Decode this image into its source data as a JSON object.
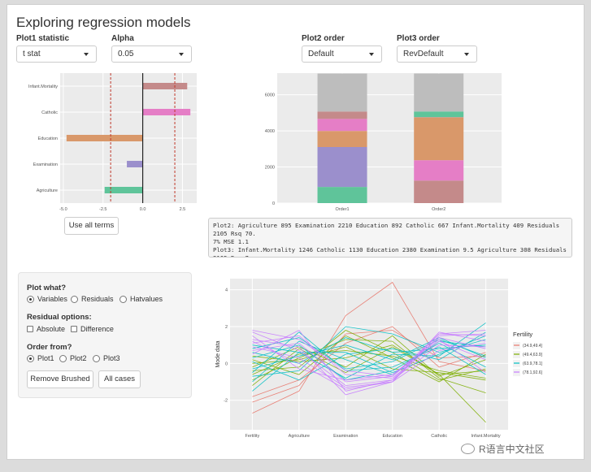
{
  "title": "Exploring regression models",
  "controls": {
    "plot1_statistic": {
      "label": "Plot1 statistic",
      "value": "t stat"
    },
    "alpha": {
      "label": "Alpha",
      "value": "0.05"
    },
    "plot2_order": {
      "label": "Plot2 order",
      "value": "Default"
    },
    "plot3_order": {
      "label": "Plot3 order",
      "value": "RevDefault"
    },
    "use_all_terms": "Use all terms"
  },
  "output_text": "Plot2: Agriculture 895 Examination 2210 Education 892 Catholic 667 Infant.Mortality 409 Residuals 2105 Rsq 70.\n7% MSE 1.1\nPlot3: Infant.Mortality 1246 Catholic 1130 Education 2380 Examination 9.5 Agriculture 308 Residuals 2105 Rsq 7\n0.7% MSE 1.1",
  "panel": {
    "plot_what": {
      "label": "Plot what?",
      "options": [
        "Variables",
        "Residuals",
        "Hatvalues"
      ],
      "selected": 0
    },
    "residual_options": {
      "label": "Residual options:",
      "options": [
        "Absolute",
        "Difference"
      ]
    },
    "order_from": {
      "label": "Order from?",
      "options": [
        "Plot1",
        "Plot2",
        "Plot3"
      ],
      "selected": 0
    },
    "remove_brushed": "Remove Brushed",
    "all_cases": "All cases"
  },
  "watermark": "R语言中文社区",
  "colors": {
    "bg": "#ebebeb",
    "grid": "#ffffff",
    "crit": "#c0392b"
  },
  "chart_data": [
    {
      "type": "bar",
      "orientation": "horizontal",
      "categories": [
        "Infant.Mortality",
        "Catholic",
        "Education",
        "Examination",
        "Agriculture"
      ],
      "values": [
        2.8,
        3.0,
        -4.8,
        -1.0,
        -2.4
      ],
      "colors": [
        "#c48a8a",
        "#e57ec6",
        "#d9986a",
        "#9b8fcc",
        "#5fc49a"
      ],
      "critical_lines": [
        -2.02,
        2.02
      ],
      "xlim": [
        -5.2,
        3.4
      ],
      "xticks": [
        "-5.0",
        "-2.5",
        "0.0",
        "2.5"
      ],
      "xtick_values": [
        -5,
        -2.5,
        0,
        2.5
      ]
    },
    {
      "type": "bar",
      "stacked": true,
      "categories": [
        "Order1",
        "Order2"
      ],
      "ylim": [
        0,
        7200
      ],
      "yticks": [
        "0",
        "2000",
        "4000",
        "6000"
      ],
      "ytick_values": [
        0,
        2000,
        4000,
        6000
      ],
      "stacks": [
        [
          {
            "value": 895,
            "color": "#5fc49a"
          },
          {
            "value": 2210,
            "color": "#9b8fcc"
          },
          {
            "value": 892,
            "color": "#d9986a"
          },
          {
            "value": 667,
            "color": "#e57ec6"
          },
          {
            "value": 409,
            "color": "#c48a8a"
          },
          {
            "value": 2105,
            "color": "#bdbdbd"
          }
        ],
        [
          {
            "value": 1246,
            "color": "#c48a8a"
          },
          {
            "value": 1130,
            "color": "#e57ec6"
          },
          {
            "value": 2380,
            "color": "#d9986a"
          },
          {
            "value": 9.5,
            "color": "#9b8fcc"
          },
          {
            "value": 308,
            "color": "#5fc49a"
          },
          {
            "value": 2105,
            "color": "#bdbdbd"
          }
        ]
      ]
    },
    {
      "type": "line",
      "subtype": "parallel-coordinates",
      "x": [
        "Fertility",
        "Agriculture",
        "Examination",
        "Education",
        "Catholic",
        "Infant.Mortality"
      ],
      "ylabel": "Mode data",
      "ylim": [
        -3.6,
        4.6
      ],
      "yticks": [
        "-2",
        "0",
        "2",
        "4"
      ],
      "ytick_values": [
        -2,
        0,
        2,
        4
      ],
      "legend": {
        "title": "Fertility",
        "position": "right",
        "entries": [
          {
            "label": "(34.9,49.4]",
            "color": "#e8776b"
          },
          {
            "label": "(49.4,63.9]",
            "color": "#7cae00"
          },
          {
            "label": "(63.9,78.1]",
            "color": "#00bfc4"
          },
          {
            "label": "(78.1,92.6]",
            "color": "#c77cff"
          }
        ]
      },
      "series": [
        {
          "group": 0,
          "values": [
            -2.7,
            -1.5,
            2.6,
            4.4,
            0.1,
            -0.4
          ]
        },
        {
          "group": 0,
          "values": [
            -2.1,
            -1.2,
            1.6,
            1.8,
            0.3,
            0.4
          ]
        },
        {
          "group": 0,
          "values": [
            -1.8,
            -0.9,
            1.1,
            2.0,
            -0.2,
            0.6
          ]
        },
        {
          "group": 1,
          "values": [
            -1.2,
            0.8,
            -0.5,
            0.9,
            -0.6,
            -3.2
          ]
        },
        {
          "group": 1,
          "values": [
            -0.9,
            0.3,
            1.3,
            1.2,
            -0.8,
            -1.6
          ]
        },
        {
          "group": 1,
          "values": [
            -0.6,
            0.5,
            0.7,
            0.4,
            -0.4,
            -0.8
          ]
        },
        {
          "group": 1,
          "values": [
            -0.4,
            -0.2,
            1.8,
            0.6,
            -0.9,
            -0.3
          ]
        },
        {
          "group": 1,
          "values": [
            -0.2,
            0.9,
            -0.2,
            1.5,
            -0.7,
            0.2
          ]
        },
        {
          "group": 1,
          "values": [
            0.0,
            0.2,
            0.9,
            -0.3,
            -0.5,
            -0.9
          ]
        },
        {
          "group": 1,
          "values": [
            0.2,
            -0.6,
            1.5,
            0.3,
            -1.0,
            0.5
          ]
        },
        {
          "group": 1,
          "values": [
            0.4,
            0.1,
            0.3,
            1.0,
            -0.6,
            -0.4
          ]
        },
        {
          "group": 2,
          "values": [
            -1.5,
            0.6,
            -0.8,
            0.5,
            0.4,
            2.2
          ]
        },
        {
          "group": 2,
          "values": [
            -1.0,
            1.2,
            0.2,
            -0.6,
            1.2,
            0.9
          ]
        },
        {
          "group": 2,
          "values": [
            -0.7,
            -0.4,
            2.0,
            1.6,
            0.6,
            1.3
          ]
        },
        {
          "group": 2,
          "values": [
            -0.5,
            1.7,
            -0.4,
            -0.2,
            0.9,
            -0.6
          ]
        },
        {
          "group": 2,
          "values": [
            -0.3,
            0.4,
            1.0,
            0.2,
            1.4,
            0.3
          ]
        },
        {
          "group": 2,
          "values": [
            0.1,
            -0.9,
            0.5,
            0.8,
            0.2,
            1.7
          ]
        },
        {
          "group": 2,
          "values": [
            0.3,
            1.0,
            -0.9,
            -0.4,
            1.1,
            -0.2
          ]
        },
        {
          "group": 2,
          "values": [
            0.6,
            0.0,
            1.4,
            0.6,
            0.8,
            1.0
          ]
        },
        {
          "group": 2,
          "values": [
            0.8,
            1.4,
            -0.3,
            0.1,
            1.3,
            0.4
          ]
        },
        {
          "group": 2,
          "values": [
            1.0,
            0.6,
            0.6,
            -0.5,
            0.5,
            1.5
          ]
        },
        {
          "group": 3,
          "values": [
            0.5,
            1.8,
            -1.5,
            -0.9,
            1.6,
            1.5
          ]
        },
        {
          "group": 3,
          "values": [
            0.7,
            1.1,
            -1.0,
            -0.7,
            1.4,
            0.8
          ]
        },
        {
          "group": 3,
          "values": [
            0.9,
            0.3,
            -1.3,
            -1.0,
            1.7,
            1.2
          ]
        },
        {
          "group": 3,
          "values": [
            1.1,
            1.5,
            -0.6,
            -0.8,
            1.2,
            0.2
          ]
        },
        {
          "group": 3,
          "values": [
            1.3,
            0.9,
            -1.7,
            -1.0,
            1.5,
            1.6
          ]
        },
        {
          "group": 3,
          "values": [
            1.5,
            -0.3,
            -0.9,
            -0.6,
            1.3,
            -0.5
          ]
        },
        {
          "group": 3,
          "values": [
            1.7,
            0.7,
            -1.2,
            -0.9,
            1.0,
            0.9
          ]
        },
        {
          "group": 3,
          "values": [
            1.8,
            1.3,
            -0.4,
            -0.7,
            1.6,
            1.8
          ]
        },
        {
          "group": 3,
          "values": [
            1.2,
            0.0,
            -1.4,
            -1.0,
            0.7,
            1.1
          ]
        }
      ]
    }
  ]
}
